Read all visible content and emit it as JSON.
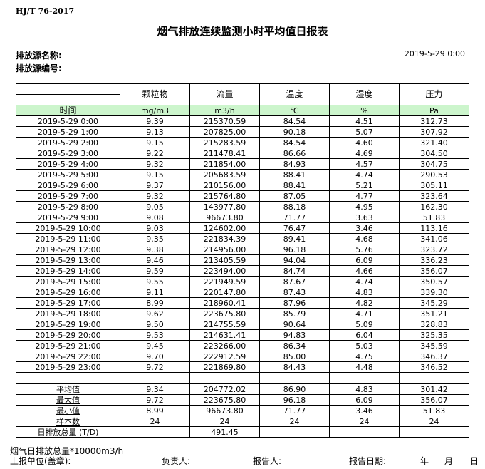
{
  "standard": "HJ/T  76-2017",
  "title": "烟气排放连续监测小时平均值日报表",
  "source_name_label": "排放源名称:",
  "source_code_label": "排放源编号:",
  "report_datetime": "2019-5-29 0:00",
  "columns": [
    "颗粒物",
    "流量",
    "温度",
    "湿度",
    "压力"
  ],
  "time_header": "时间",
  "units": [
    "mg/m3",
    "m3/h",
    "℃",
    "%",
    "Pa"
  ],
  "rows": [
    [
      "2019-5-29 0:00",
      "9.39",
      "215370.59",
      "84.54",
      "4.51",
      "312.73"
    ],
    [
      "2019-5-29 1:00",
      "9.13",
      "207825.00",
      "90.18",
      "5.07",
      "307.92"
    ],
    [
      "2019-5-29 2:00",
      "9.15",
      "215283.59",
      "84.54",
      "4.60",
      "321.40"
    ],
    [
      "2019-5-29 3:00",
      "9.22",
      "211478.41",
      "86.66",
      "4.69",
      "304.50"
    ],
    [
      "2019-5-29 4:00",
      "9.32",
      "211854.00",
      "84.93",
      "4.57",
      "304.75"
    ],
    [
      "2019-5-29 5:00",
      "9.15",
      "205683.59",
      "88.41",
      "4.74",
      "290.53"
    ],
    [
      "2019-5-29 6:00",
      "9.37",
      "210156.00",
      "88.41",
      "5.21",
      "305.11"
    ],
    [
      "2019-5-29 7:00",
      "9.32",
      "215764.80",
      "87.05",
      "4.77",
      "323.64"
    ],
    [
      "2019-5-29 8:00",
      "9.05",
      "143977.80",
      "88.18",
      "4.95",
      "162.30"
    ],
    [
      "2019-5-29 9:00",
      "9.08",
      "96673.80",
      "71.77",
      "3.63",
      "51.83"
    ],
    [
      "2019-5-29 10:00",
      "9.03",
      "124602.00",
      "76.47",
      "3.46",
      "113.16"
    ],
    [
      "2019-5-29 11:00",
      "9.35",
      "221834.39",
      "89.41",
      "4.68",
      "341.06"
    ],
    [
      "2019-5-29 12:00",
      "9.38",
      "214956.00",
      "96.18",
      "5.76",
      "323.72"
    ],
    [
      "2019-5-29 13:00",
      "9.46",
      "213405.59",
      "94.04",
      "6.09",
      "336.23"
    ],
    [
      "2019-5-29 14:00",
      "9.59",
      "223494.00",
      "84.74",
      "4.66",
      "356.07"
    ],
    [
      "2019-5-29 15:00",
      "9.55",
      "221949.59",
      "87.67",
      "4.74",
      "350.57"
    ],
    [
      "2019-5-29 16:00",
      "9.11",
      "220147.80",
      "87.43",
      "4.83",
      "339.30"
    ],
    [
      "2019-5-29 17:00",
      "8.99",
      "218960.41",
      "87.96",
      "4.82",
      "345.29"
    ],
    [
      "2019-5-29 18:00",
      "9.62",
      "223675.80",
      "85.79",
      "4.71",
      "351.21"
    ],
    [
      "2019-5-29 19:00",
      "9.50",
      "214755.59",
      "90.64",
      "5.09",
      "328.83"
    ],
    [
      "2019-5-29 20:00",
      "9.53",
      "214631.41",
      "94.83",
      "6.04",
      "325.35"
    ],
    [
      "2019-5-29 21:00",
      "9.45",
      "223266.00",
      "86.34",
      "5.03",
      "345.59"
    ],
    [
      "2019-5-29 22:00",
      "9.70",
      "222912.59",
      "85.00",
      "4.75",
      "346.37"
    ],
    [
      "2019-5-29 23:00",
      "9.72",
      "221869.80",
      "84.43",
      "4.48",
      "346.52"
    ]
  ],
  "stats": [
    [
      "平均值",
      "9.34",
      "204772.02",
      "86.90",
      "4.83",
      "301.42"
    ],
    [
      "最大值",
      "9.72",
      "223675.80",
      "96.18",
      "6.09",
      "356.07"
    ],
    [
      "最小值",
      "8.99",
      "96673.80",
      "71.77",
      "3.46",
      "51.83"
    ],
    [
      "样本数",
      "24",
      "24",
      "24",
      "24",
      "24"
    ],
    [
      "日排放总量 (T/D)",
      "",
      "491.45",
      "",
      "",
      ""
    ]
  ],
  "unit_color": "#ccf5cc",
  "footer": {
    "note": "烟气日排放总量*10000m3/h",
    "unit_label": "上报单位(盖章):",
    "responsible_label": "负责人:",
    "reporter_label": "报告人:",
    "report_date_label": "报告日期:",
    "year": "年",
    "month": "月",
    "day": "日"
  }
}
